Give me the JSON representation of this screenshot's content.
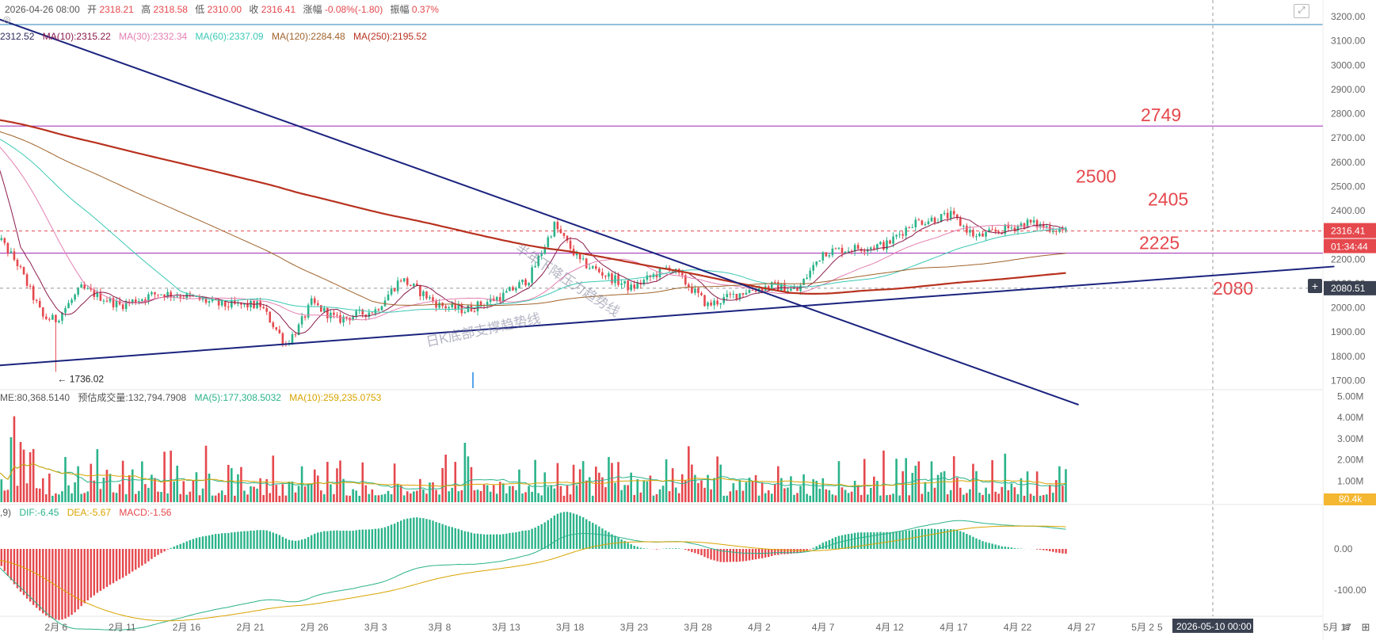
{
  "header": {
    "datetime": "2026-04-26 08:00",
    "open_label": "开",
    "open": "2318.21",
    "high_label": "高",
    "high": "2318.58",
    "low_label": "低",
    "low": "2310.00",
    "close_label": "收",
    "close": "2316.41",
    "change_label": "涨幅",
    "change": "-0.08%(-1.80)",
    "amplitude_label": "振幅",
    "amplitude": "0.37%"
  },
  "ma_legend": [
    {
      "text": "2312.52",
      "color": "#2b2b5b"
    },
    {
      "text": "MA(10):2315.22",
      "color": "#8b1a4a"
    },
    {
      "text": "MA(30):2332.34",
      "color": "#e37fb0"
    },
    {
      "text": "MA(60):2337.09",
      "color": "#3cc9b4"
    },
    {
      "text": "MA(120):2284.48",
      "color": "#a0632b"
    },
    {
      "text": "MA(250):2195.52",
      "color": "#b8321f"
    }
  ],
  "volume_legend": [
    {
      "text": "ME:80,368.5140",
      "color": "#555555"
    },
    {
      "text": "预估成交量:132,794.7908",
      "color": "#555555"
    },
    {
      "text": "MA(5):177,308.5032",
      "color": "#2bb38a"
    },
    {
      "text": "MA(10):259,235.0753",
      "color": "#d9a400"
    }
  ],
  "macd_legend": [
    {
      "text": ",9)",
      "color": "#555555"
    },
    {
      "text": "DIF:-6.45",
      "color": "#2bb38a"
    },
    {
      "text": "DEA:-5.67",
      "color": "#d9a400"
    },
    {
      "text": "MACD:-1.56",
      "color": "#e5484d"
    }
  ],
  "annotations": {
    "trendline_upper": "半年下降压力趋势线",
    "trendline_lower": "日K底部支撑趋势线",
    "low_marker": "← 1736.02"
  },
  "price_badges": {
    "last_price": "2316.41",
    "countdown": "01:34:44",
    "crosshair_price": "2080.51",
    "volume_badge": "80.4k",
    "crosshair_date": "2026-05-10 00:00"
  },
  "colors": {
    "up": "#e5484d",
    "down": "#2bb38a",
    "trendline": "#1a237e",
    "level_line": "#9c27b0",
    "level_text": "#e5484d"
  },
  "chart_data": {
    "type": "candlestick",
    "instrument": "ETH",
    "price_axis": {
      "range": [
        1650,
        3240
      ],
      "ticks": [
        "3200.00",
        "3100.00",
        "3000.00",
        "2900.00",
        "2800.00",
        "2700.00",
        "2600.00",
        "2500.00",
        "2400.00",
        "2300.00",
        "2200.00",
        "2100.00",
        "2000.00",
        "1900.00",
        "1800.00",
        "1700.00"
      ]
    },
    "volume_axis": {
      "range": [
        0,
        5200000
      ],
      "ticks": [
        "5.00M",
        "4.00M",
        "3.00M",
        "2.00M",
        "1.00M"
      ]
    },
    "macd_axis": {
      "range": [
        -140,
        130
      ],
      "ticks": [
        "0.00",
        "-100.00"
      ]
    },
    "x_ticks": [
      "2月 6",
      "2月 11",
      "2月 16",
      "2月 21",
      "2月 26",
      "3月 3",
      "3月 8",
      "3月 13",
      "3月 18",
      "3月 23",
      "3月 28",
      "4月 2",
      "4月 7",
      "4月 12",
      "4月 17",
      "4月 22",
      "4月 27",
      "5月 2",
      "5",
      "5月 17"
    ],
    "key_levels": [
      {
        "label": "2749",
        "value": 2749,
        "line": true
      },
      {
        "label": "2500",
        "value": 2500,
        "line": false
      },
      {
        "label": "2405",
        "value": 2405,
        "line": false
      },
      {
        "label": "2225",
        "value": 2225,
        "line": true
      },
      {
        "label": "2080",
        "value": 2080,
        "line": false
      }
    ],
    "top_line_value": 3170,
    "trendlines": [
      {
        "name": "半年下降压力趋势线",
        "from": {
          "date": "2月 1",
          "price": 3200
        },
        "to": {
          "date": "4月 27",
          "price": 1600
        }
      },
      {
        "name": "日K底部支撑趋势线",
        "from": {
          "date": "2月 1",
          "price": 1760
        },
        "to": {
          "date": "5月 17",
          "price": 2170
        }
      }
    ],
    "price_anchors": [
      {
        "date": "2月 1",
        "price": 2330
      },
      {
        "date": "2月 3",
        "price": 2180
      },
      {
        "date": "2月 5",
        "price": 1960
      },
      {
        "date": "2月 6",
        "price": 1950
      },
      {
        "date": "2月 8",
        "price": 2080
      },
      {
        "date": "2月 11",
        "price": 2010
      },
      {
        "date": "2月 14",
        "price": 2060
      },
      {
        "date": "2月 16",
        "price": 2050
      },
      {
        "date": "2月 19",
        "price": 2010
      },
      {
        "date": "2月 22",
        "price": 2010
      },
      {
        "date": "2月 24",
        "price": 1850
      },
      {
        "date": "2月 25",
        "price": 1920
      },
      {
        "date": "2月 26",
        "price": 2020
      },
      {
        "date": "2月 28",
        "price": 1950
      },
      {
        "date": "3月 3",
        "price": 1990
      },
      {
        "date": "3月 5",
        "price": 2120
      },
      {
        "date": "3月 8",
        "price": 2010
      },
      {
        "date": "3月 10",
        "price": 1990
      },
      {
        "date": "3月 13",
        "price": 2050
      },
      {
        "date": "3月 15",
        "price": 2120
      },
      {
        "date": "3月 17",
        "price": 2340
      },
      {
        "date": "3月 19",
        "price": 2190
      },
      {
        "date": "3月 23",
        "price": 2080
      },
      {
        "date": "3月 26",
        "price": 2170
      },
      {
        "date": "3月 29",
        "price": 2010
      },
      {
        "date": "4月 1",
        "price": 2070
      },
      {
        "date": "4月 3",
        "price": 2090
      },
      {
        "date": "4月 5",
        "price": 2070
      },
      {
        "date": "4月 7",
        "price": 2230
      },
      {
        "date": "4月 12",
        "price": 2260
      },
      {
        "date": "4月 14",
        "price": 2350
      },
      {
        "date": "4月 17",
        "price": 2380
      },
      {
        "date": "4月 19",
        "price": 2290
      },
      {
        "date": "4月 21",
        "price": 2320
      },
      {
        "date": "4月 23",
        "price": 2350
      },
      {
        "date": "4月 26",
        "price": 2316
      }
    ],
    "low_point": {
      "date": "2月 6",
      "price": 1736.02
    }
  }
}
